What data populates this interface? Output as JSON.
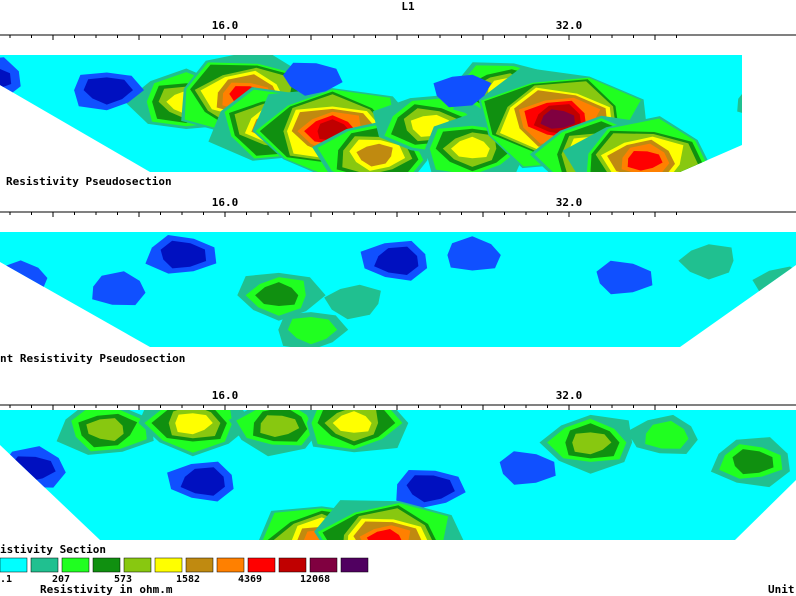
{
  "figure_title": "L1",
  "sections": [
    {
      "caption": "Resistivity Pseudosection",
      "ticks": [
        "16.0",
        "32.0"
      ],
      "show_top_title": true
    },
    {
      "caption": "nt Resistivity Pseudosection",
      "ticks": [
        "16.0",
        "32.0"
      ],
      "show_top_title": false
    },
    {
      "caption": "istivity Section",
      "ticks": [
        "16.0",
        "32.0"
      ],
      "show_top_title": false
    }
  ],
  "legend": {
    "colors": [
      "#00ffff",
      "#20c090",
      "#20ff20",
      "#109010",
      "#88c810",
      "#ffff00",
      "#c08a10",
      "#ff8000",
      "#ff0000",
      "#c00000",
      "#800040",
      "#500060"
    ],
    "labels": [
      ".1",
      "207",
      "573",
      "1582",
      "4369",
      "12068"
    ],
    "units": "Resistivity in ohm.m",
    "right_label": "Unit"
  },
  "colors": {
    "palette": [
      "#0010c0",
      "#1050ff",
      "#00ffff",
      "#20c090",
      "#20ff20",
      "#109010",
      "#88c810",
      "#ffff00",
      "#c08a10",
      "#ff8000",
      "#ff0000",
      "#c00000",
      "#800040",
      "#500060"
    ]
  },
  "chart_data": [
    {
      "type": "heatmap",
      "title": "Resistivity Pseudosection",
      "x_ticks": [
        16.0,
        32.0
      ],
      "grid": false,
      "scale": "log",
      "z_levels": [
        ".1",
        "207",
        "573",
        "1582",
        "4369",
        "12068"
      ],
      "hotspots": [
        {
          "x": 14.2,
          "depth": 0.4,
          "level": 7
        },
        {
          "x": 17.0,
          "depth": 0.35,
          "level": 10
        },
        {
          "x": 18.5,
          "depth": 0.6,
          "level": 9
        },
        {
          "x": 21.0,
          "depth": 0.65,
          "level": 11
        },
        {
          "x": 23.0,
          "depth": 0.85,
          "level": 8
        },
        {
          "x": 25.5,
          "depth": 0.6,
          "level": 7
        },
        {
          "x": 27.5,
          "depth": 0.8,
          "level": 7
        },
        {
          "x": 29.0,
          "depth": 0.3,
          "level": 7
        },
        {
          "x": 31.5,
          "depth": 0.55,
          "level": 12
        },
        {
          "x": 33.5,
          "depth": 0.85,
          "level": 9
        },
        {
          "x": 35.5,
          "depth": 0.9,
          "level": 10
        },
        {
          "x": 5.0,
          "depth": 0.2,
          "level": 0
        },
        {
          "x": 10.5,
          "depth": 0.3,
          "level": 0
        },
        {
          "x": 20.0,
          "depth": 0.2,
          "level": 1
        },
        {
          "x": 27.0,
          "depth": 0.3,
          "level": 1
        },
        {
          "x": 38.0,
          "depth": 0.25,
          "level": 2
        },
        {
          "x": 41.0,
          "depth": 0.4,
          "level": 3
        }
      ]
    },
    {
      "type": "heatmap",
      "title": "nt Resistivity Pseudosection",
      "x_ticks": [
        16.0,
        32.0
      ],
      "grid": false,
      "scale": "log",
      "z_levels": [
        ".1",
        "207",
        "573",
        "1582",
        "4369",
        "12068"
      ],
      "hotspots": [
        {
          "x": 6.5,
          "depth": 0.4,
          "level": 1
        },
        {
          "x": 11.0,
          "depth": 0.5,
          "level": 1
        },
        {
          "x": 14.0,
          "depth": 0.2,
          "level": 0
        },
        {
          "x": 18.5,
          "depth": 0.55,
          "level": 5
        },
        {
          "x": 22.0,
          "depth": 0.6,
          "level": 3
        },
        {
          "x": 24.0,
          "depth": 0.25,
          "level": 0
        },
        {
          "x": 27.5,
          "depth": 0.2,
          "level": 1
        },
        {
          "x": 30.0,
          "depth": 0.8,
          "level": 2
        },
        {
          "x": 34.5,
          "depth": 0.4,
          "level": 1
        },
        {
          "x": 38.5,
          "depth": 0.25,
          "level": 3
        },
        {
          "x": 42.0,
          "depth": 0.45,
          "level": 3
        },
        {
          "x": 8.5,
          "depth": 0.8,
          "level": 2
        },
        {
          "x": 20.0,
          "depth": 0.85,
          "level": 4
        }
      ]
    },
    {
      "type": "heatmap",
      "title": "istivity Section",
      "x_ticks": [
        16.0,
        32.0
      ],
      "grid": false,
      "scale": "log",
      "z_levels": [
        ".1",
        "207",
        "573",
        "1582",
        "4369",
        "12068"
      ],
      "hotspots": [
        {
          "x": 2.0,
          "depth": 0.2,
          "level": 0
        },
        {
          "x": 7.0,
          "depth": 0.45,
          "level": 0
        },
        {
          "x": 10.5,
          "depth": 0.15,
          "level": 6
        },
        {
          "x": 14.5,
          "depth": 0.1,
          "level": 7
        },
        {
          "x": 18.5,
          "depth": 0.12,
          "level": 6
        },
        {
          "x": 15.0,
          "depth": 0.55,
          "level": 0
        },
        {
          "x": 22.0,
          "depth": 0.1,
          "level": 7
        },
        {
          "x": 25.5,
          "depth": 0.6,
          "level": 0
        },
        {
          "x": 30.0,
          "depth": 0.45,
          "level": 1
        },
        {
          "x": 33.0,
          "depth": 0.25,
          "level": 6
        },
        {
          "x": 36.5,
          "depth": 0.2,
          "level": 4
        },
        {
          "x": 40.5,
          "depth": 0.4,
          "level": 5
        },
        {
          "x": 20.5,
          "depth": 1.0,
          "level": 9
        },
        {
          "x": 23.5,
          "depth": 1.0,
          "level": 10
        }
      ]
    }
  ]
}
